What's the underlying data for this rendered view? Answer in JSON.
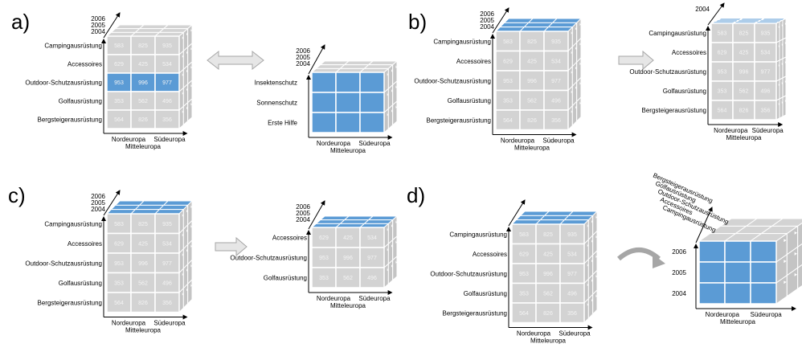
{
  "panels": {
    "a": "a)",
    "b": "b)",
    "c": "c)",
    "d": "d)"
  },
  "years": [
    "2006",
    "2005",
    "2004"
  ],
  "rows": [
    "Campingausrüstung",
    "Accessoires",
    "Outdoor-Schutzausrüstung",
    "Golfausrüstung",
    "Bergsteigerausrüstung"
  ],
  "regions": [
    "Nordeuropa",
    "Mitteleuropa",
    "Südeuropa"
  ],
  "values": [
    [
      "583",
      "825",
      "935"
    ],
    [
      "629",
      "425",
      "534"
    ],
    [
      "953",
      "996",
      "977"
    ],
    [
      "353",
      "562",
      "496"
    ],
    [
      "564",
      "826",
      "356"
    ]
  ],
  "subcategories": [
    "Insektenschutz",
    "Sonnenschutz",
    "Erste Hilfe"
  ],
  "colors": {
    "highlight": "#5b9bd5",
    "cell": "#d3d3d3",
    "cell_border": "#ffffff",
    "arrow": "#bfbfbf"
  }
}
